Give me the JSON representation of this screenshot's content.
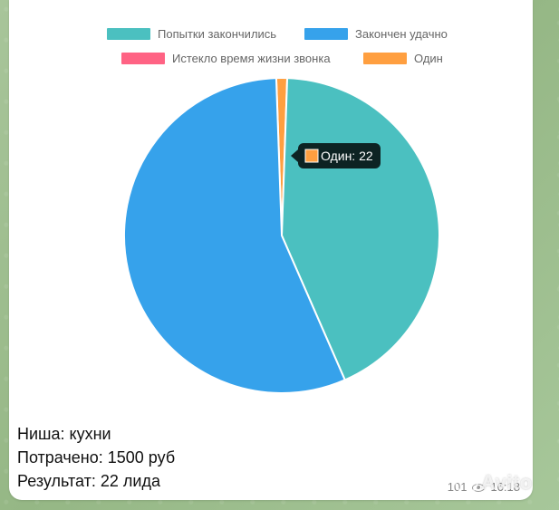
{
  "chart_data": {
    "type": "pie",
    "categories": [
      "Попытки закончились",
      "Закончен удачно",
      "Истекло время жизни звонка",
      "Один"
    ],
    "values": [
      850,
      1110,
      0,
      22
    ],
    "colors": [
      "#4bc0c0",
      "#36a2eb",
      "#ff6384",
      "#ff9f40"
    ],
    "legend_position": "top",
    "tooltip": {
      "label": "Один: 22",
      "series_index": 3
    }
  },
  "message": {
    "lines": [
      "Ниша: кухни",
      "Потрачено: 1500 руб",
      "Результат: 22 лида"
    ],
    "views": "101",
    "time": "16:18"
  },
  "watermark": {
    "text": "Avito"
  }
}
